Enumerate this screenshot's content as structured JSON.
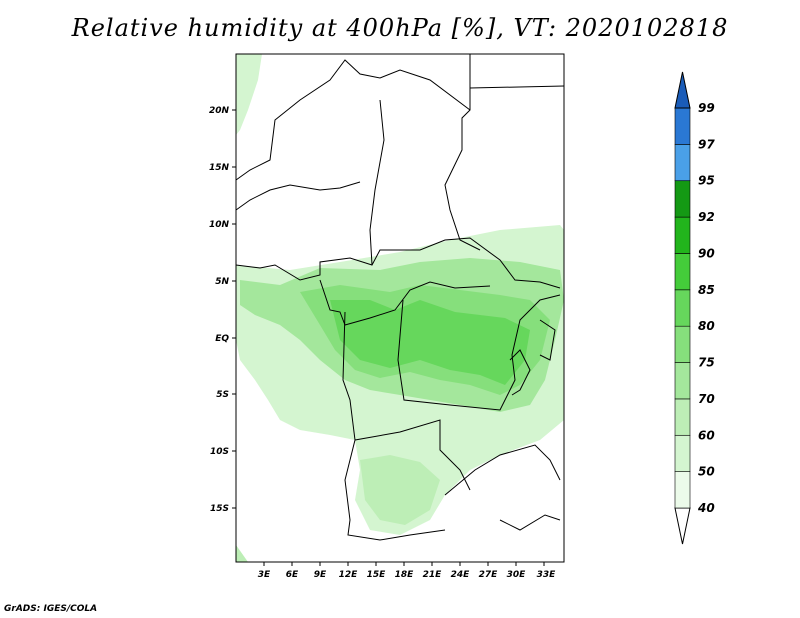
{
  "title": "Relative humidity at 400hPa [%], VT: 2020102818",
  "credit": "GrADS: IGES/COLA",
  "map": {
    "lat_labels": [
      "20N",
      "15N",
      "10N",
      "5N",
      "EQ",
      "5S",
      "10S",
      "15S"
    ],
    "lon_labels": [
      "3E",
      "6E",
      "9E",
      "12E",
      "15E",
      "18E",
      "21E",
      "24E",
      "27E",
      "30E",
      "33E"
    ]
  },
  "colorbar": {
    "labels": [
      "40",
      "50",
      "60",
      "70",
      "75",
      "80",
      "85",
      "90",
      "92",
      "95",
      "97",
      "99"
    ],
    "colors": [
      "#ffffff",
      "#ecfbea",
      "#d4f5d0",
      "#bdeeb6",
      "#a4e79c",
      "#86df7c",
      "#66d75c",
      "#44cc3a",
      "#22b51c",
      "#149914",
      "#4aa0e8",
      "#2a78d4",
      "#1a5cb8"
    ]
  },
  "colors": {
    "border": "#000000",
    "humidity_light": "#d4f5d0",
    "humidity_mid": "#86df7c",
    "humidity_dark": "#44cc3a"
  }
}
